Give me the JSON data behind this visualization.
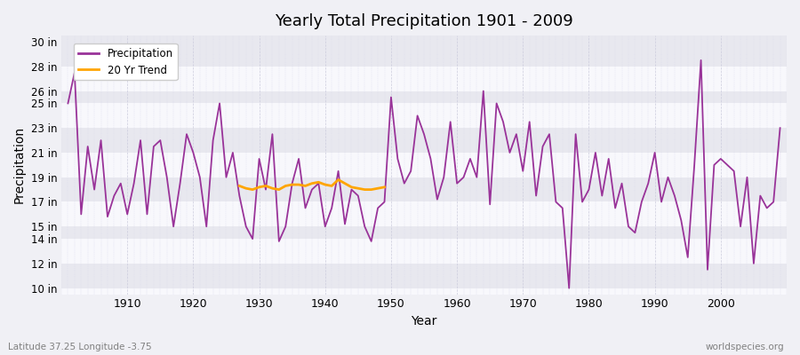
{
  "title": "Yearly Total Precipitation 1901 - 2009",
  "xlabel": "Year",
  "ylabel": "Precipitation",
  "watermark": "worldspecies.org",
  "caption": "Latitude 37.25 Longitude -3.75",
  "precip_color": "#993399",
  "trend_color": "#FFA500",
  "bg_color": "#f0f0f5",
  "plot_bg_color": "#f0f0f5",
  "ylim": [
    9.5,
    30.5
  ],
  "ytick_vals": [
    10,
    12,
    14,
    15,
    17,
    19,
    21,
    23,
    25,
    26,
    28,
    30
  ],
  "years": [
    1901,
    1902,
    1903,
    1904,
    1905,
    1906,
    1907,
    1908,
    1909,
    1910,
    1911,
    1912,
    1913,
    1914,
    1915,
    1916,
    1917,
    1918,
    1919,
    1920,
    1921,
    1922,
    1923,
    1924,
    1925,
    1926,
    1927,
    1928,
    1929,
    1930,
    1931,
    1932,
    1933,
    1934,
    1935,
    1936,
    1937,
    1938,
    1939,
    1940,
    1941,
    1942,
    1943,
    1944,
    1945,
    1946,
    1947,
    1948,
    1949,
    1950,
    1951,
    1952,
    1953,
    1954,
    1955,
    1956,
    1957,
    1958,
    1959,
    1960,
    1961,
    1962,
    1963,
    1964,
    1965,
    1966,
    1967,
    1968,
    1969,
    1970,
    1971,
    1972,
    1973,
    1974,
    1975,
    1976,
    1977,
    1978,
    1979,
    1980,
    1981,
    1982,
    1983,
    1984,
    1985,
    1986,
    1987,
    1988,
    1989,
    1990,
    1991,
    1992,
    1993,
    1994,
    1995,
    1996,
    1997,
    1998,
    1999,
    2000,
    2001,
    2002,
    2003,
    2004,
    2005,
    2006,
    2007,
    2008,
    2009
  ],
  "precip": [
    25.0,
    27.5,
    16.0,
    21.5,
    18.0,
    22.0,
    15.8,
    17.5,
    18.5,
    16.0,
    18.5,
    22.0,
    16.0,
    21.5,
    22.0,
    19.0,
    15.0,
    18.5,
    22.5,
    21.0,
    19.0,
    15.0,
    22.0,
    25.0,
    19.0,
    21.0,
    17.5,
    15.0,
    14.0,
    20.5,
    18.0,
    22.5,
    13.8,
    15.0,
    18.5,
    20.5,
    16.5,
    18.0,
    18.5,
    15.0,
    16.5,
    19.5,
    15.2,
    18.0,
    17.5,
    15.0,
    13.8,
    16.5,
    17.0,
    25.5,
    20.5,
    18.5,
    19.5,
    24.0,
    22.5,
    20.5,
    17.2,
    19.0,
    23.5,
    18.5,
    19.0,
    20.5,
    19.0,
    26.0,
    16.8,
    25.0,
    23.5,
    21.0,
    22.5,
    19.5,
    23.5,
    17.5,
    21.5,
    22.5,
    17.0,
    16.5,
    10.0,
    22.5,
    17.0,
    18.0,
    21.0,
    17.5,
    20.5,
    16.5,
    18.5,
    15.0,
    14.5,
    17.0,
    18.5,
    21.0,
    17.0,
    19.0,
    17.5,
    15.5,
    12.5,
    20.0,
    28.5,
    11.5,
    20.0,
    20.5,
    20.0,
    19.5,
    15.0,
    19.0,
    12.0,
    17.5,
    16.5,
    17.0,
    23.0
  ],
  "trend_years": [
    1927,
    1928,
    1929,
    1930,
    1931,
    1932,
    1933,
    1934,
    1935,
    1936,
    1937,
    1938,
    1939,
    1940,
    1941,
    1942,
    1943,
    1944,
    1945,
    1946,
    1947,
    1948,
    1949
  ],
  "trend_values": [
    18.3,
    18.1,
    18.0,
    18.2,
    18.3,
    18.1,
    18.0,
    18.3,
    18.4,
    18.4,
    18.3,
    18.5,
    18.6,
    18.4,
    18.3,
    18.8,
    18.5,
    18.2,
    18.1,
    18.0,
    18.0,
    18.1,
    18.2
  ]
}
